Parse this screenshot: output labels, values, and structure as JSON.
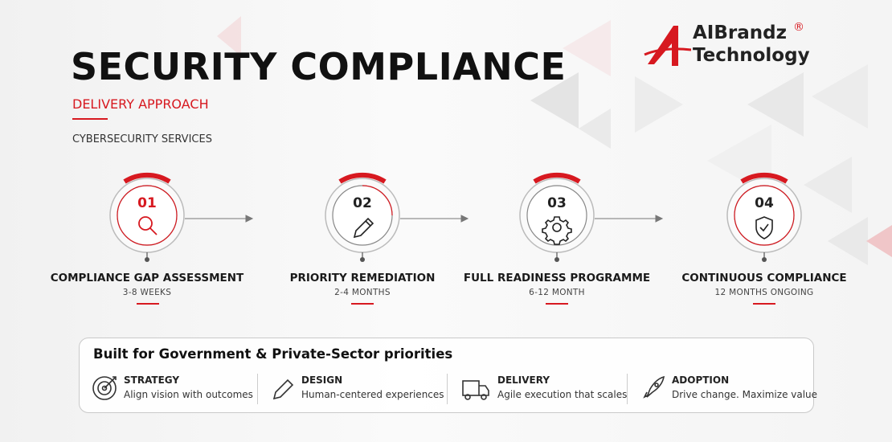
{
  "header": {
    "title": "SECURITY COMPLIANCE",
    "subtitle": "DELIVERY APPROACH",
    "tagline": "CYBERSECURITY SERVICES"
  },
  "logo": {
    "line1": "AIBrandz",
    "mark": "®",
    "line2": "Technology"
  },
  "steps": [
    {
      "number": "01",
      "title": "COMPLIANCE GAP ASSESSMENT",
      "duration": "3-8 WEEKS"
    },
    {
      "number": "02",
      "title": "PRIORITY REMEDIATION",
      "duration": "2-4 MONTHS"
    },
    {
      "number": "03",
      "title": "FULL READINESS PROGRAMME",
      "duration": "6-12 MONTH"
    },
    {
      "number": "04",
      "title": "CONTINUOUS COMPLIANCE",
      "duration": "12 MONTHS ONGOING"
    }
  ],
  "priorities": {
    "title": "Built for Government & Private-Sector priorities",
    "items": [
      {
        "title": "STRATEGY",
        "text": "Align vision with outcomes"
      },
      {
        "title": "DESIGN",
        "text": "Human-centered experiences"
      },
      {
        "title": "DELIVERY",
        "text": "Agile execution that scales"
      },
      {
        "title": "ADOPTION",
        "text": "Drive change. Maximize value"
      }
    ]
  }
}
